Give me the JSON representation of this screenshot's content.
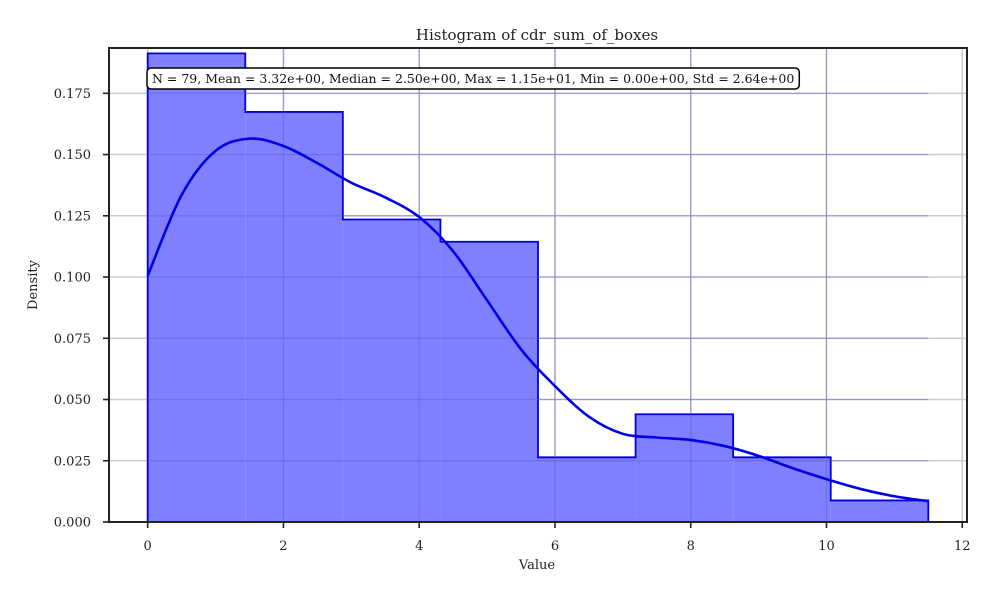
{
  "chart_data": {
    "type": "bar",
    "title": "Histogram of cdr_sum_of_boxes",
    "xlabel": "Value",
    "ylabel": "Density",
    "xlim": [
      -0.57,
      12.07
    ],
    "ylim": [
      0,
      0.1935
    ],
    "xticks": [
      0,
      2,
      4,
      6,
      8,
      10,
      12
    ],
    "yticks": [
      0.0,
      0.025,
      0.05,
      0.075,
      0.1,
      0.125,
      0.15,
      0.175
    ],
    "xtick_labels": [
      "0",
      "2",
      "4",
      "6",
      "8",
      "10",
      "12"
    ],
    "ytick_labels": [
      "0.000",
      "0.025",
      "0.050",
      "0.075",
      "0.100",
      "0.125",
      "0.150",
      "0.175"
    ],
    "grid": true,
    "bins": [
      {
        "x0": 0.0,
        "x1": 1.4375,
        "density": 0.1913
      },
      {
        "x0": 1.4375,
        "x1": 2.875,
        "density": 0.1674
      },
      {
        "x0": 2.875,
        "x1": 4.3125,
        "density": 0.1235
      },
      {
        "x0": 4.3125,
        "x1": 5.75,
        "density": 0.1144
      },
      {
        "x0": 5.75,
        "x1": 7.1875,
        "density": 0.0264
      },
      {
        "x0": 7.1875,
        "x1": 8.625,
        "density": 0.044
      },
      {
        "x0": 8.625,
        "x1": 10.0625,
        "density": 0.0264
      },
      {
        "x0": 10.0625,
        "x1": 11.5,
        "density": 0.0088
      }
    ],
    "kde": {
      "x": [
        0.0,
        0.5,
        1.0,
        1.5,
        2.0,
        2.5,
        3.0,
        3.5,
        4.0,
        4.5,
        5.0,
        5.5,
        6.0,
        6.5,
        7.0,
        7.5,
        8.0,
        8.5,
        9.0,
        9.5,
        10.0,
        10.5,
        11.0,
        11.5
      ],
      "y": [
        0.1005,
        0.1335,
        0.1515,
        0.1565,
        0.1535,
        0.1465,
        0.1385,
        0.1325,
        0.1245,
        0.1105,
        0.0905,
        0.0705,
        0.0555,
        0.043,
        0.036,
        0.0345,
        0.0335,
        0.031,
        0.027,
        0.022,
        0.0175,
        0.0135,
        0.0105,
        0.0085
      ]
    },
    "colors": {
      "fill": "#7f7fff",
      "edge": "#0000dd",
      "kde": "#0000e6",
      "grid": "#cccccc",
      "axes": "#222222"
    },
    "stats_box": "N = 79, Mean = 3.32e+00, Median = 2.50e+00, Max = 1.15e+01, Min = 0.00e+00, Std = 2.64e+00"
  }
}
